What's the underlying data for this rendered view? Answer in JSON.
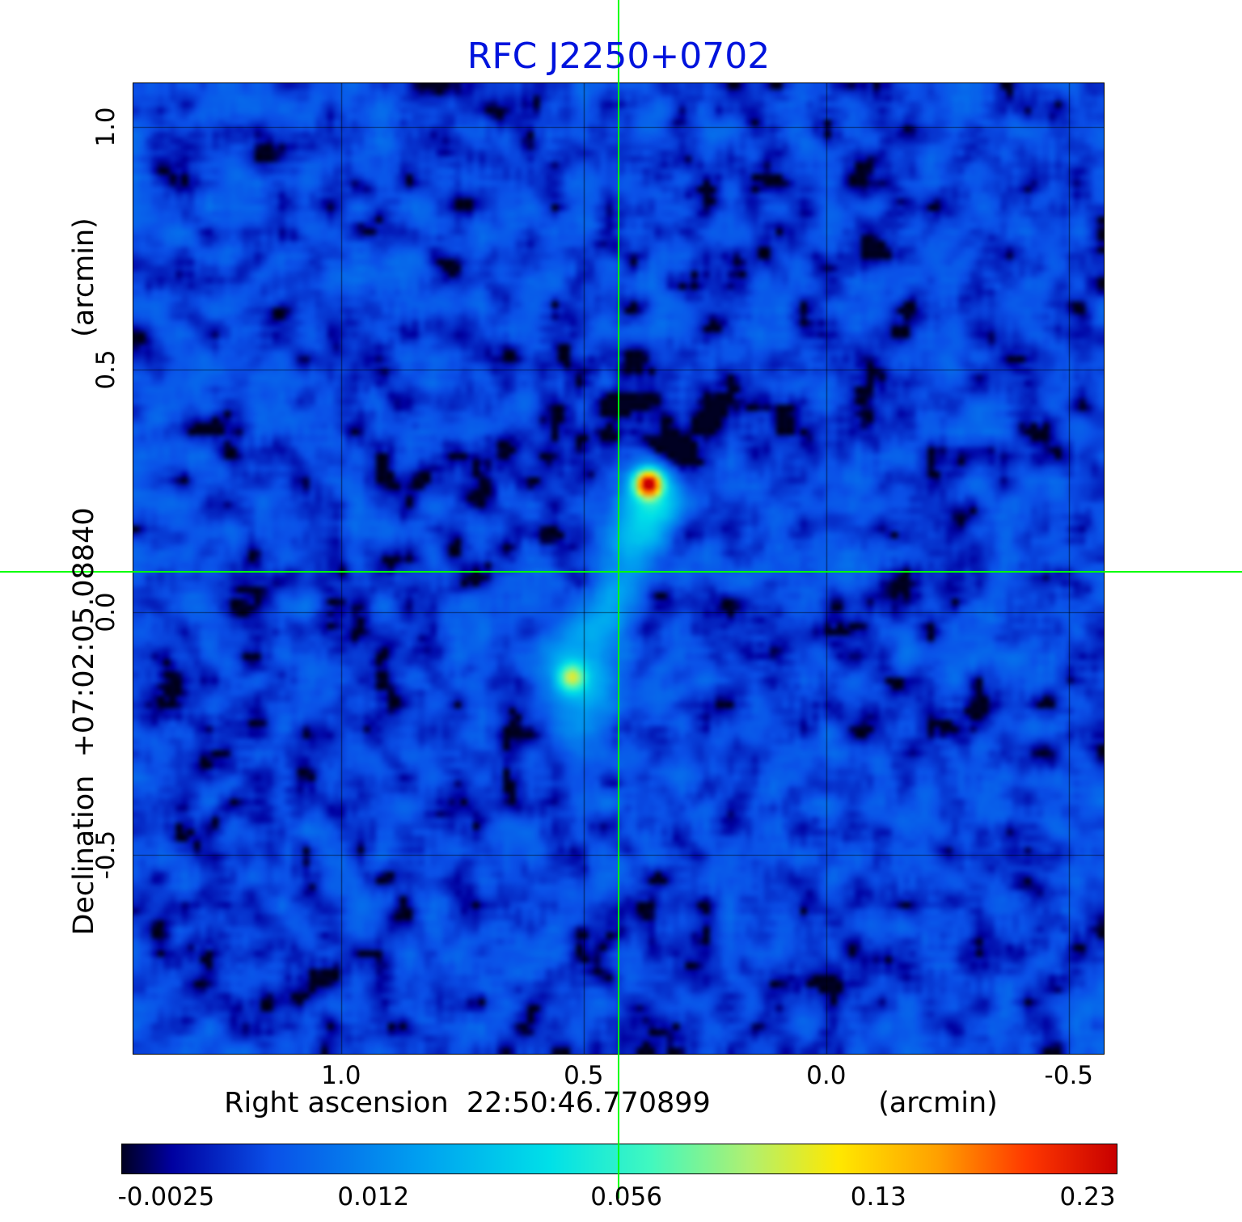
{
  "title": {
    "text": "RFC J2250+0702",
    "color": "#0013dd"
  },
  "axes": {
    "x": {
      "label": "Right ascension  22:50:46.770899",
      "unit": "(arcmin)",
      "ticks": [
        {
          "label": "1.0",
          "f": 0.214
        },
        {
          "label": "0.5",
          "f": 0.464
        },
        {
          "label": "0.0",
          "f": 0.714
        },
        {
          "label": "-0.5",
          "f": 0.964
        }
      ]
    },
    "y": {
      "label": "Declination  +07:02:05.08840",
      "unit": "(arcmin)",
      "ticks": [
        {
          "label": "1.0",
          "f": 0.045
        },
        {
          "label": "0.5",
          "f": 0.295
        },
        {
          "label": "0.0",
          "f": 0.545
        },
        {
          "label": "-0.5",
          "f": 0.795
        }
      ]
    }
  },
  "crosshair": {
    "fx": 0.5,
    "fy": 0.503,
    "color": "#00ff00"
  },
  "colorbar": {
    "ticks": [
      {
        "label": "-0.0025",
        "f": 0.045
      },
      {
        "label": "0.012",
        "f": 0.253
      },
      {
        "label": "0.056",
        "f": 0.507
      },
      {
        "label": "0.13",
        "f": 0.76
      },
      {
        "label": "0.23",
        "f": 0.97
      }
    ]
  },
  "chart_data": {
    "type": "heatmap",
    "title": "RFC J2250+0702",
    "xlabel": "Right ascension 22:50:46.770899 (arcmin)",
    "ylabel": "Declination +07:02:05.08840 (arcmin)",
    "x_ticks_arcmin": [
      1.0,
      0.5,
      0.0,
      -0.5
    ],
    "y_ticks_arcmin": [
      1.0,
      0.5,
      0.0,
      -0.5
    ],
    "x_range_arcmin": [
      1.44,
      -0.57
    ],
    "y_range_arcmin": [
      -0.91,
      1.1
    ],
    "colorbar_ticks_jy": [
      -0.0025,
      0.012,
      0.056,
      0.13,
      0.23
    ],
    "intensity_scale": {
      "min": -0.0027,
      "max": 0.235,
      "stretch": "sqrt",
      "background": 0.0015,
      "noise": 0.012
    },
    "colormap": [
      [
        0.0,
        "#000022"
      ],
      [
        0.05,
        "#0000a0"
      ],
      [
        0.15,
        "#0a50e8"
      ],
      [
        0.3,
        "#00a0f0"
      ],
      [
        0.43,
        "#00e0e8"
      ],
      [
        0.53,
        "#40f8c0"
      ],
      [
        0.63,
        "#b0f070"
      ],
      [
        0.72,
        "#ffe800"
      ],
      [
        0.82,
        "#ffa000"
      ],
      [
        0.91,
        "#ff3800"
      ],
      [
        1.0,
        "#c80000"
      ]
    ],
    "components": [
      {
        "name": "core-peak",
        "fx": 0.531,
        "fy": 0.413,
        "amp": 0.23,
        "sigma": 0.0085
      },
      {
        "name": "core-halo",
        "fx": 0.533,
        "fy": 0.428,
        "amp": 0.045,
        "sigma": 0.02
      },
      {
        "name": "jet-knot",
        "fx": 0.52,
        "fy": 0.468,
        "amp": 0.026,
        "sigma": 0.018
      },
      {
        "name": "bridge-1",
        "fx": 0.503,
        "fy": 0.515,
        "amp": 0.02,
        "sigma": 0.019
      },
      {
        "name": "bridge-2",
        "fx": 0.485,
        "fy": 0.558,
        "amp": 0.018,
        "sigma": 0.019
      },
      {
        "name": "lobe-halo",
        "fx": 0.457,
        "fy": 0.61,
        "amp": 0.03,
        "sigma": 0.023
      },
      {
        "name": "lobe-peak",
        "fx": 0.452,
        "fy": 0.612,
        "amp": 0.08,
        "sigma": 0.0085
      },
      {
        "name": "lobe-tail",
        "fx": 0.463,
        "fy": 0.653,
        "amp": 0.009,
        "sigma": 0.018
      },
      {
        "name": "neg-bowl-ne",
        "fx": 0.548,
        "fy": 0.37,
        "amp": -0.0062,
        "sigma": 0.015
      },
      {
        "name": "neg-bowl-wide",
        "fx": 0.575,
        "fy": 0.355,
        "amp": -0.0028,
        "sigma": 0.035
      },
      {
        "name": "neg-bowl-nw",
        "fx": 0.43,
        "fy": 0.33,
        "amp": -0.0018,
        "sigma": 0.05
      }
    ],
    "artifacts": [
      {
        "slope": 0.53,
        "width": 0.015,
        "amp": -0.0022,
        "extent": 0.3
      },
      {
        "slope": -0.62,
        "width": 0.015,
        "amp": -0.0016,
        "extent": 0.3
      }
    ]
  }
}
